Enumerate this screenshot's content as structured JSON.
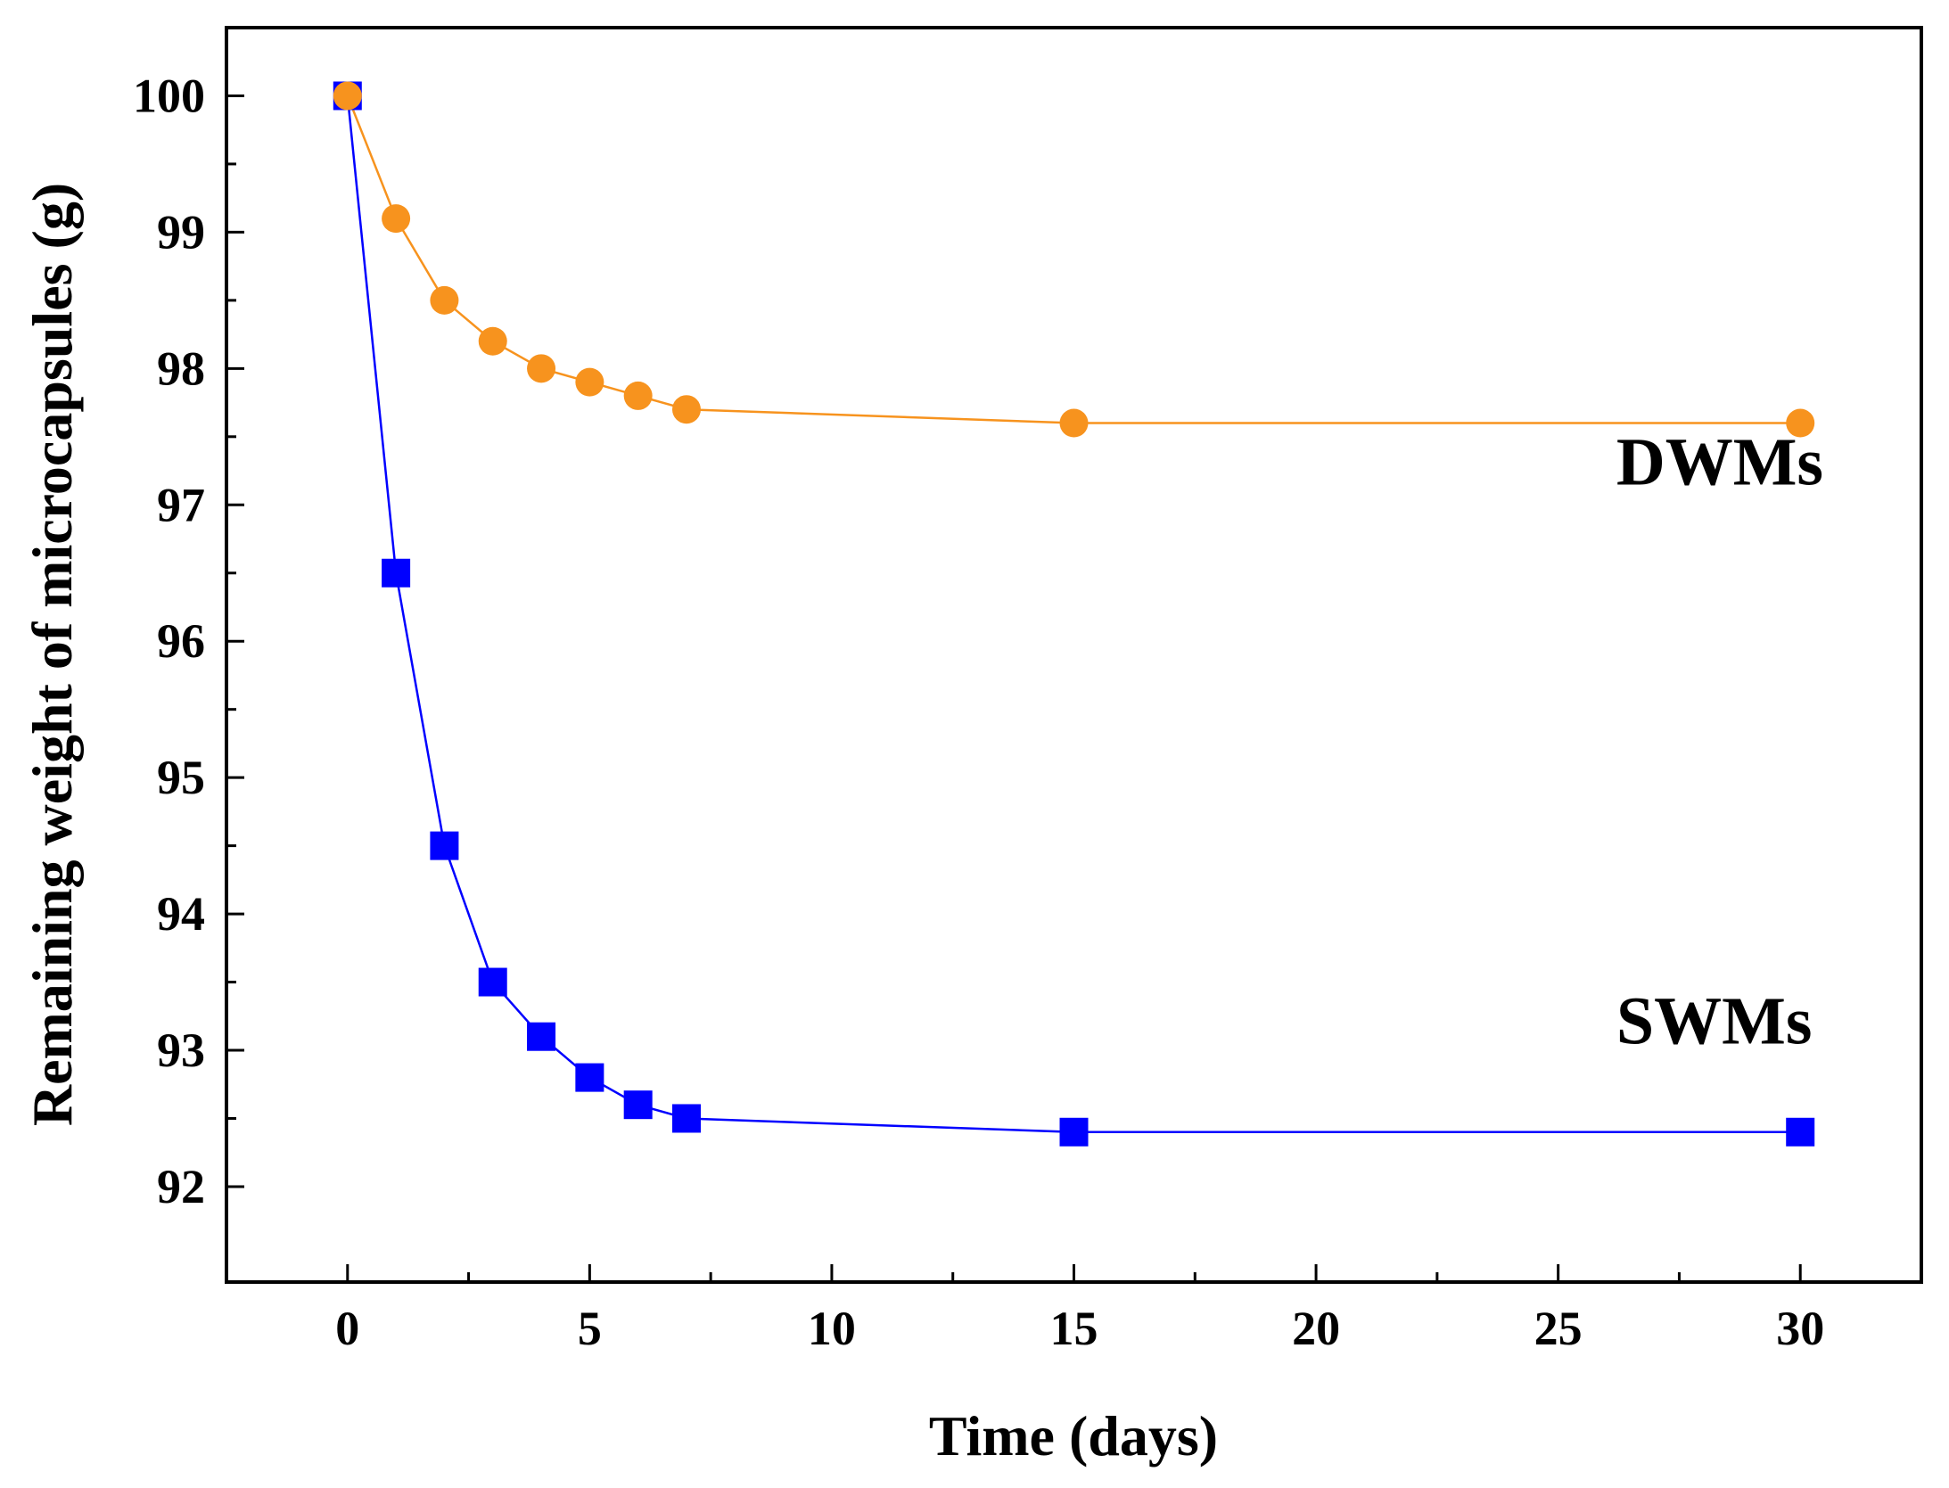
{
  "chart_data": {
    "type": "line",
    "title": "",
    "xlabel": "Time (days)",
    "ylabel": "Remaining weight of microcapsules (g)",
    "xlim": [
      -2.5,
      32.5
    ],
    "ylim": [
      91.3,
      100.5
    ],
    "xticks": [
      0,
      5,
      10,
      15,
      20,
      25,
      30
    ],
    "xtick_labels": [
      "0",
      "5",
      "10",
      "15",
      "20",
      "25",
      "30"
    ],
    "xminor": [
      2.5,
      7.5,
      12.5,
      17.5,
      22.5,
      27.5
    ],
    "yticks": [
      92,
      93,
      94,
      95,
      96,
      97,
      98,
      99,
      100
    ],
    "ytick_labels": [
      "92",
      "93",
      "94",
      "95",
      "96",
      "97",
      "98",
      "99",
      "100"
    ],
    "yminor": [
      92.5,
      93.5,
      94.5,
      95.5,
      96.5,
      97.5,
      98.5,
      99.5
    ],
    "grid": false,
    "series": [
      {
        "name": "DWMs",
        "marker": "circle",
        "color": "#F7931E",
        "x": [
          0,
          1,
          2,
          3,
          4,
          5,
          6,
          7,
          15,
          30
        ],
        "y": [
          100.0,
          99.1,
          98.5,
          98.2,
          98.0,
          97.9,
          97.8,
          97.7,
          97.6,
          97.6
        ]
      },
      {
        "name": "SWMs",
        "marker": "square",
        "color": "#0000FF",
        "x": [
          0,
          1,
          2,
          3,
          4,
          5,
          6,
          7,
          15,
          30
        ],
        "y": [
          100.0,
          96.5,
          94.5,
          93.5,
          93.1,
          92.8,
          92.6,
          92.5,
          92.4,
          92.4
        ]
      }
    ],
    "annotations": [
      {
        "text": "DWMs",
        "x": 26.2,
        "y": 97.15
      },
      {
        "text": "SWMs",
        "x": 26.2,
        "y": 93.05
      }
    ]
  }
}
